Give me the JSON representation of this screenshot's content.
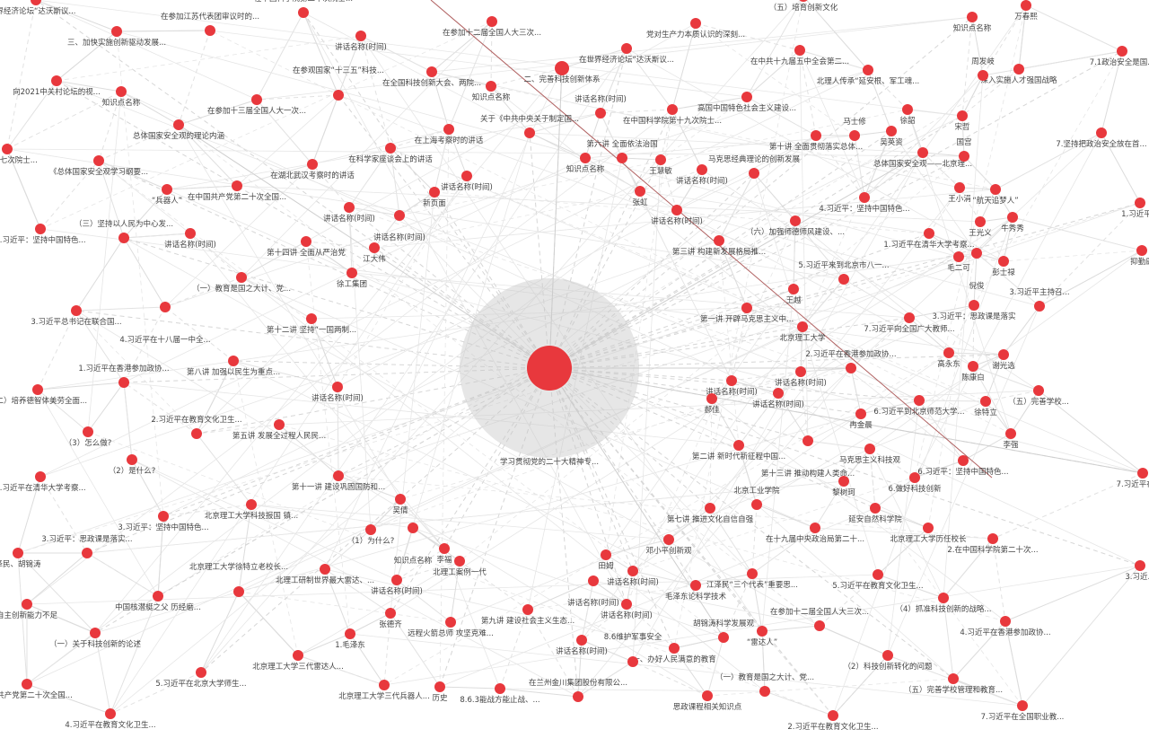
{
  "graph": {
    "hub_label": "学习贯彻党的二十大精神专...",
    "node_color": "#e8383d",
    "highlight_edge_color": "#b06060",
    "nodes": [
      "界经济论坛“达沃斯议...",
      "三、加快实施创新驱动发展...",
      "在参加江苏代表团审议时的...",
      "在中国科学院第二十次院士...",
      "讲话名称(时间)",
      "在参加十二届全国人大三次...",
      "二、完善科技创新体系",
      "在全国科技创新大会、两院...",
      "知识点名称",
      "向2021中关村论坛的视...",
      "知识点名称",
      "在参加十三届全国人大一次...",
      "在参观国家“十三五”科技...",
      "总体国家安全观的理论内涵",
      "在上海考察时的讲话",
      "关于《中共中央关于制定国...",
      "院第十七次院士...",
      "在科学家座谈会上的讲话",
      "《总体国家安全观学习纲要...",
      "在湖北武汉考察时的讲话",
      "讲话名称(时间)",
      "新页面",
      "“兵器人”",
      "在中国共产党第二十次全国...",
      "讲话名称(时间)",
      "讲话名称(时间)",
      "2.习近平：坚持中国特色...",
      "（三）坚持以人民为中心发...",
      "讲话名称(时间)",
      "第十四讲 全面从严治党",
      "江大伟",
      "徐工集团",
      "（一）教育是国之大计、党...",
      "3.习近平总书记在联合国...",
      "4.习近平在十八届一中全...",
      "第十二讲 坚持“一国两制...",
      "第八讲 加强以民生为重点...",
      "讲话名称(时间)",
      "（二）培养德智体美劳全面...",
      "1.习近平在香港参加政协...",
      "第五讲 发展全过程人民民...",
      "（3）怎么做?",
      "2.习近平在教育文化卫生...",
      "（2）是什么?",
      "1.习近平在清华大学考察...",
      "第十一讲 建设巩固国防和...",
      "吴倩",
      "北京理工大学科技报国 镇...",
      "3.习近平：坚持中国特色...",
      "（1）为什么?",
      "知识点名称",
      "李福",
      "北理工案例一代",
      "泽民、胡锦涛",
      "3.习近平：思政课是落实...",
      "北理工研制世界最大雷达、...",
      "讲话名称(时间)",
      "中国核潜艇之父 历经磨...",
      "北京理工大学徐特立老校长...",
      "自主创新能力不足",
      "张德齐",
      "远程火箭总师 攻坚克难...",
      "第九讲 建设社会主义生态...",
      "（一）关于科技创新的论述",
      "1.毛泽东",
      "北京理工大学三代雷达人...",
      "5.习近平在北京大学师生...",
      "中国共产党第二十次全国...",
      "北京理工大学三代兵器人...",
      "历史",
      "8.6.3能战方能止战、...",
      "4.习近平在教育文化卫生...",
      "在兰州金川集团股份有限公...",
      "（五）培育创新文化",
      "党对生产力本质认识的深刻...",
      "在世界经济论坛“达沃斯议...",
      "在中共十九届五中全会第二...",
      "万春熙",
      "知识点名称",
      "北理人传承“延安根、军工魂...",
      "深入实施人才强国战略",
      "7.1政治安全是国...",
      "周发岐",
      "讲话名称(时间)",
      "在中国科学院第十九次院士...",
      "高国中国特色社会主义建设...",
      "徐韶",
      "宋哲",
      "第十讲 全面贯彻落实总体...",
      "马士修",
      "吴英资",
      "7.坚持把政治安全放在首...",
      "总体国家安全观——北京理...",
      "国宫",
      "知识点名称",
      "第六讲 全面依法治国",
      "王慧敏",
      "张虹",
      "讲话名称(时间)",
      "马克思经典理论的创新发展",
      "王小涓",
      "“航天追梦人”",
      "1.习近平...",
      "4.习近平：坚持中国特色...",
      "讲话名称(时间)",
      "（六）加强师德师风建设、...",
      "王光义",
      "牛秀秀",
      "1.习近平在清华大学考察...",
      "第三讲 构建新发展格局推...",
      "毛二可",
      "倪俊",
      "彭士禄",
      "抑勤康",
      "王越",
      "5.习近平来到北京市八一...",
      "第一讲 开辟马克思主义中...",
      "北京理工大学",
      "3.习近平：思政课是落实",
      "3.习近平主持召...",
      "7.习近平向全国广大教师...",
      "高永东",
      "陈康白",
      "谢光选",
      "讲话名称(时间)",
      "2.习近平在香港参加政协...",
      "讲话名称(时间)",
      "讲话名称(时间)",
      "郝佳",
      "6.习近平到北京师范大学...",
      "徐特立",
      "（五）完善学校...",
      "冉金晨",
      "李强",
      "第二讲 新时代新征程中国...",
      "第十三讲 推动构建人类命...",
      "马克思主义科技观",
      "6.习近平：坚持中国特色...",
      "7.习近平在全...",
      "黎树珂",
      "6.做好科技创新",
      "第七讲 推进文化自信自强",
      "北京工业学院",
      "在十九届中央政治局第二十...",
      "延安自然科学院",
      "北京理工大学历任校长",
      "2.在中国科学院第二十次...",
      "3.习近...",
      "邓小平创新观",
      "田姆",
      "讲话名称(时间)",
      "讲话名称(时间)",
      "江泽民“三个代表”重要思...",
      "毛泽东论科学技术",
      "5.习近平在教育文化卫生...",
      "（4）抓准科技创新的战略...",
      "讲话名称(时间)",
      "4.习近平在香港参加政协...",
      "讲话名称(时间)",
      "“雷达人”",
      "在参加十二届全国人大三次...",
      "胡锦涛科学发展观",
      "一、办好人民满意的教育",
      "8.6维护军事安全",
      "（2）科技创新转化的问题",
      "（五）完善学校管理和教育...",
      "思政课程相关知识点",
      "（一）教育是国之大计、党...",
      "2.习近平在教育文化卫生...",
      "7.习近平在全国职业教..."
    ]
  }
}
